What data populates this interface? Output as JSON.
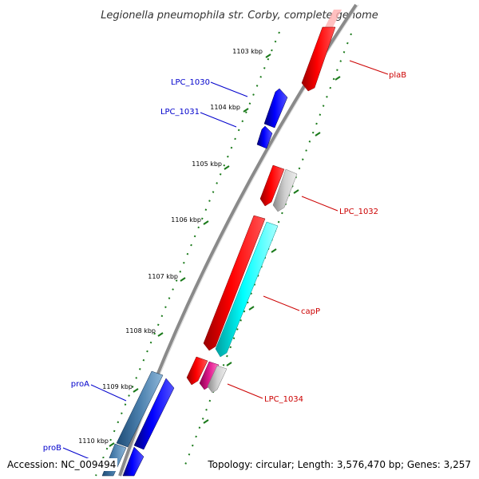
{
  "title": "Legionella pneumophila str. Corby, complete genome",
  "accession": "Accession: NC_009494",
  "summary": "Topology: circular; Length: 3,576,470 bp; Genes: 3,257",
  "ticks": [
    "1103 kbp",
    "1104 kbp",
    "1105 kbp",
    "1106 kbp",
    "1107 kbp",
    "1108 kbp",
    "1109 kbp",
    "1110 kbp"
  ],
  "labels": {
    "plaB": "plaB",
    "lpc1030": "LPC_1030",
    "lpc1031": "LPC_1031",
    "lpc1032": "LPC_1032",
    "capP": "capP",
    "lpc1034": "LPC_1034",
    "proA": "proA",
    "proB": "proB"
  },
  "colors": {
    "forward_gene": "#ff0000",
    "reverse_gene": "#0000ff",
    "pseudo_gene": "#bbbbbb",
    "cds_cyan": "#00ffff",
    "magenta": "#e0198e",
    "steelblue": "#4a7fad",
    "backbone": "#808080",
    "tick": "#1a7a1a"
  }
}
